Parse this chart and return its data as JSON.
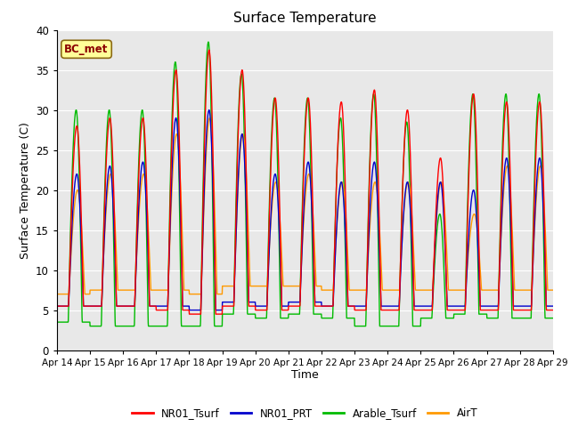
{
  "title": "Surface Temperature",
  "xlabel": "Time",
  "ylabel": "Surface Temperature (C)",
  "ylim": [
    0,
    40
  ],
  "bg_color": "#e8e8e8",
  "annotation_text": "BC_met",
  "annotation_color": "#8b0000",
  "annotation_bg": "#ffff99",
  "annotation_border": "#8b6914",
  "series": {
    "NR01_Tsurf": {
      "color": "#ff0000",
      "lw": 1.0
    },
    "NR01_PRT": {
      "color": "#0000cc",
      "lw": 1.0
    },
    "Arable_Tsurf": {
      "color": "#00bb00",
      "lw": 1.0
    },
    "AirT": {
      "color": "#ff9900",
      "lw": 1.0
    }
  },
  "xtick_labels": [
    "Apr 14",
    "Apr 15",
    "Apr 16",
    "Apr 17",
    "Apr 18",
    "Apr 19",
    "Apr 20",
    "Apr 21",
    "Apr 22",
    "Apr 23",
    "Apr 24",
    "Apr 25",
    "Apr 26",
    "Apr 27",
    "Apr 28",
    "Apr 29"
  ],
  "ytick_vals": [
    0,
    5,
    10,
    15,
    20,
    25,
    30,
    35,
    40
  ],
  "grid_color": "#ffffff",
  "figsize": [
    6.4,
    4.8
  ],
  "dpi": 100
}
